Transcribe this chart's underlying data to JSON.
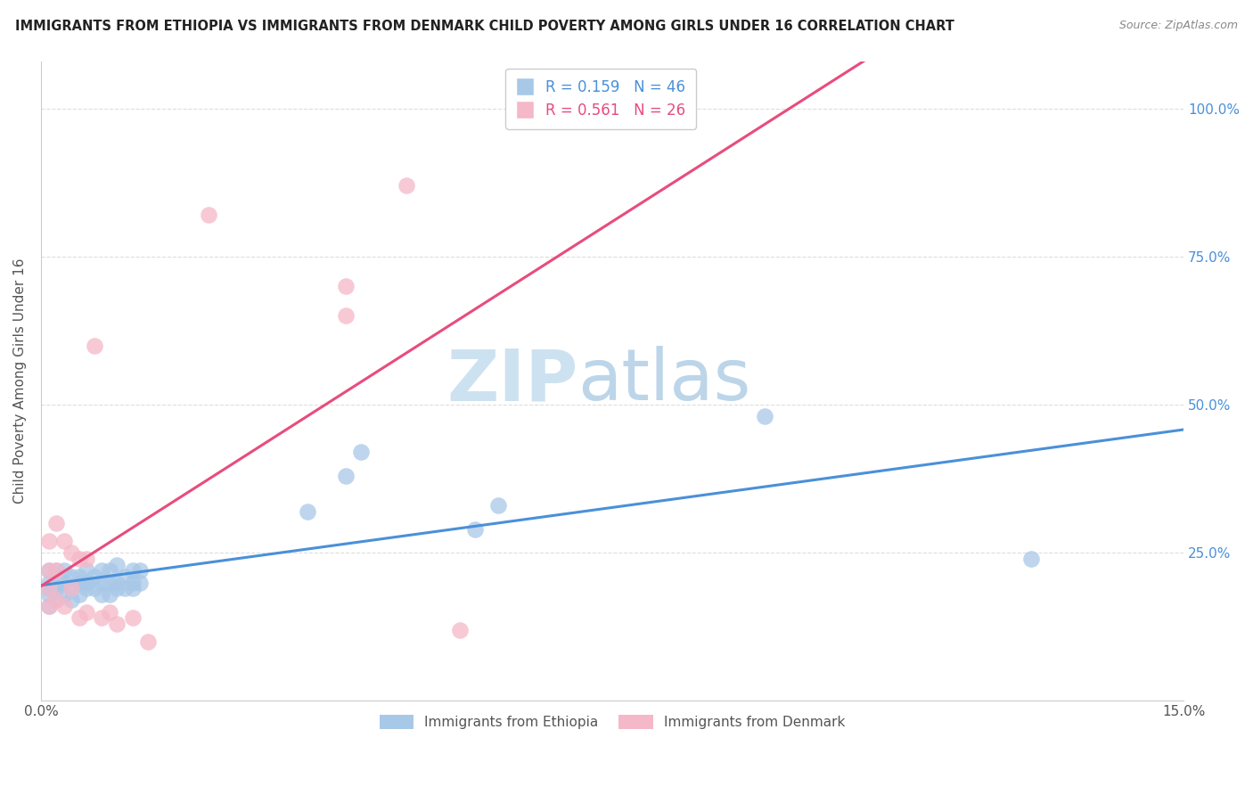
{
  "title": "IMMIGRANTS FROM ETHIOPIA VS IMMIGRANTS FROM DENMARK CHILD POVERTY AMONG GIRLS UNDER 16 CORRELATION CHART",
  "source": "Source: ZipAtlas.com",
  "ylabel": "Child Poverty Among Girls Under 16",
  "xlim": [
    0.0,
    0.15
  ],
  "ylim": [
    0.0,
    1.08
  ],
  "xticks": [
    0.0,
    0.15
  ],
  "xticklabels": [
    "0.0%",
    "15.0%"
  ],
  "ytick_positions": [
    0.25,
    0.5,
    0.75,
    1.0
  ],
  "right_ytick_labels": [
    "25.0%",
    "50.0%",
    "75.0%",
    "100.0%"
  ],
  "ethiopia_color": "#a8c8e8",
  "denmark_color": "#f5b8c8",
  "ethiopia_line_color": "#4a90d9",
  "denmark_line_color": "#e84c7d",
  "legend_ethiopia_label": "Immigrants from Ethiopia",
  "legend_denmark_label": "Immigrants from Denmark",
  "R_ethiopia": 0.159,
  "N_ethiopia": 46,
  "R_denmark": 0.561,
  "N_denmark": 26,
  "watermark_ZIP": "ZIP",
  "watermark_atlas": "atlas",
  "ethiopia_x": [
    0.001,
    0.001,
    0.001,
    0.001,
    0.001,
    0.002,
    0.002,
    0.002,
    0.002,
    0.003,
    0.003,
    0.003,
    0.004,
    0.004,
    0.004,
    0.005,
    0.005,
    0.005,
    0.006,
    0.006,
    0.006,
    0.007,
    0.007,
    0.008,
    0.008,
    0.008,
    0.009,
    0.009,
    0.009,
    0.01,
    0.01,
    0.01,
    0.011,
    0.011,
    0.012,
    0.012,
    0.012,
    0.013,
    0.013,
    0.035,
    0.04,
    0.042,
    0.057,
    0.06,
    0.095,
    0.13
  ],
  "ethiopia_y": [
    0.16,
    0.18,
    0.19,
    0.2,
    0.22,
    0.17,
    0.19,
    0.2,
    0.22,
    0.18,
    0.2,
    0.22,
    0.17,
    0.19,
    0.21,
    0.18,
    0.2,
    0.21,
    0.19,
    0.2,
    0.22,
    0.19,
    0.21,
    0.18,
    0.2,
    0.22,
    0.18,
    0.2,
    0.22,
    0.19,
    0.2,
    0.23,
    0.19,
    0.21,
    0.19,
    0.2,
    0.22,
    0.2,
    0.22,
    0.32,
    0.38,
    0.42,
    0.29,
    0.33,
    0.48,
    0.24
  ],
  "denmark_x": [
    0.001,
    0.001,
    0.001,
    0.001,
    0.002,
    0.002,
    0.002,
    0.003,
    0.003,
    0.004,
    0.004,
    0.005,
    0.005,
    0.006,
    0.006,
    0.007,
    0.008,
    0.009,
    0.01,
    0.012,
    0.014,
    0.022,
    0.04,
    0.04,
    0.048,
    0.055
  ],
  "denmark_y": [
    0.16,
    0.19,
    0.22,
    0.27,
    0.17,
    0.22,
    0.3,
    0.16,
    0.27,
    0.19,
    0.25,
    0.14,
    0.24,
    0.15,
    0.24,
    0.6,
    0.14,
    0.15,
    0.13,
    0.14,
    0.1,
    0.82,
    0.65,
    0.7,
    0.87,
    0.12
  ],
  "background_color": "#ffffff",
  "grid_color": "#dddddd"
}
